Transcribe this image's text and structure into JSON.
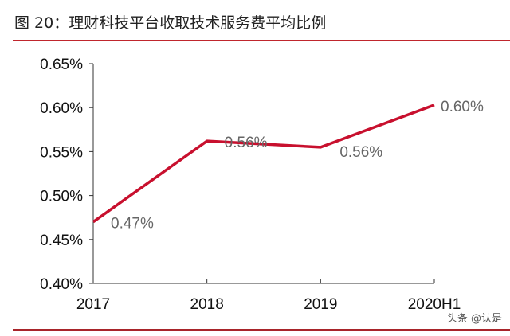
{
  "title": "图 20：理财科技平台收取技术服务费平均比例",
  "watermark": "头条 @认是",
  "chart_data": {
    "type": "line",
    "title": "图 20：理财科技平台收取技术服务费平均比例",
    "categories": [
      "2017",
      "2018",
      "2019",
      "2020H1"
    ],
    "series": [
      {
        "values": [
          0.47,
          0.562,
          0.555,
          0.603
        ],
        "color": "#c8102e"
      }
    ],
    "data_labels": [
      "0.47%",
      "0.56%",
      "0.56%",
      "0.60%"
    ],
    "ylim": [
      0.4,
      0.65
    ],
    "yticks": [
      0.4,
      0.45,
      0.5,
      0.55,
      0.6,
      0.65
    ],
    "ytick_labels": [
      "0.40%",
      "0.45%",
      "0.50%",
      "0.55%",
      "0.60%",
      "0.65%"
    ],
    "xlabel": "",
    "ylabel": "",
    "grid": false,
    "legend": "none"
  }
}
